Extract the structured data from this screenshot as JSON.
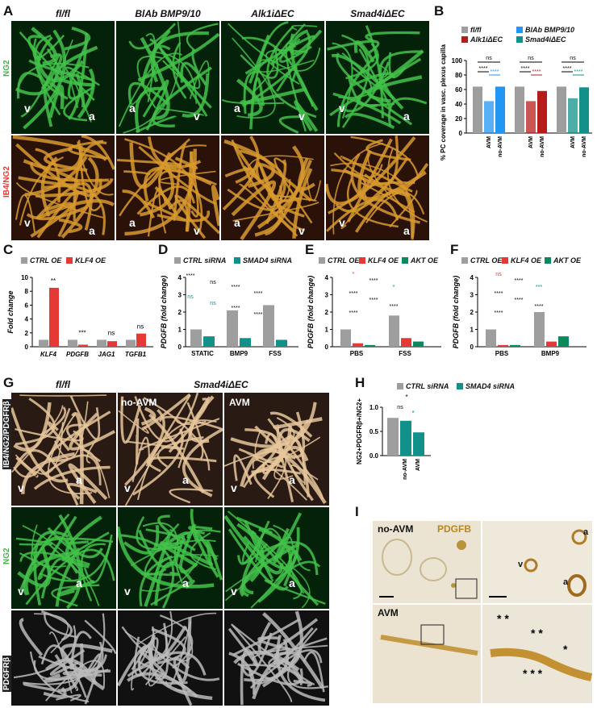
{
  "panels": {
    "A": {
      "letter": "A",
      "columns": [
        "fl/fl",
        "BlAb BMP9/10",
        "Alk1iΔEC",
        "Smad4iΔEC"
      ],
      "row_labels": [
        "NG2",
        "IB4/NG2"
      ],
      "tile_labels_top": [
        [
          "v",
          "a"
        ],
        [
          "a",
          "v"
        ],
        [
          "a",
          "v"
        ],
        [
          "v",
          "a",
          "v"
        ]
      ],
      "tile_labels_bottom": [
        [
          "v",
          "a"
        ],
        [
          "a",
          "v"
        ],
        [
          "a",
          "v"
        ],
        [
          "v",
          "a",
          "v"
        ]
      ]
    },
    "B": {
      "letter": "B",
      "legend": [
        "fl/fl",
        "BlAb BMP9/10",
        "Alk1iΔEC",
        "Smad4iΔEC"
      ],
      "ylabel": "% PC coverage in vasc. plexus capillaries",
      "yticks": [
        "0",
        "20",
        "40",
        "60",
        "80",
        "100"
      ],
      "sig": [
        "ns",
        "****",
        "****",
        "ns",
        "****",
        "****",
        "ns",
        "****",
        "****"
      ],
      "colors": {
        "ctrl": "#9e9e9e",
        "blab": "#2196f3",
        "alk1": "#b71c1c",
        "smad4": "#12918a"
      }
    },
    "C": {
      "letter": "C",
      "legend": [
        "CTRL OE",
        "KLF4 OE"
      ],
      "ylabel": "Fold change",
      "yticks": [
        "0",
        "2",
        "4",
        "6",
        "8",
        "10"
      ],
      "sig": [
        "**",
        "***",
        "ns",
        "ns"
      ],
      "colors": {
        "ctrl": "#9e9e9e",
        "oe": "#e53935"
      }
    },
    "D": {
      "letter": "D",
      "legend": [
        "CTRL siRNA",
        "SMAD4 siRNA"
      ],
      "ylabel": "PDGFB (fold change)",
      "yticks": [
        "0",
        "1",
        "2",
        "3",
        "4"
      ],
      "sig": [
        "****",
        "ns",
        "****",
        "****",
        "ns",
        "ns",
        "****",
        "****"
      ]
    },
    "E": {
      "letter": "E",
      "legend": [
        "CTRL OE",
        "KLF4 OE",
        "AKT OE"
      ],
      "ylabel": "PDGFB (fold change)",
      "yticks": [
        "0",
        "1",
        "2",
        "3",
        "4"
      ],
      "sig": [
        "*",
        "****",
        "*",
        "****",
        "****",
        "****",
        "****"
      ]
    },
    "F": {
      "letter": "F",
      "legend": [
        "CTRL OE",
        "KLF4 OE",
        "AKT OE"
      ],
      "ylabel": "PDGFB (fold change)",
      "yticks": [
        "0",
        "1",
        "2",
        "3",
        "4"
      ],
      "sig": [
        "ns",
        "****",
        "***",
        "****",
        "****",
        "****",
        "****"
      ]
    },
    "G": {
      "letter": "G",
      "columns": [
        "fl/fl",
        "Smad4iΔEC"
      ],
      "subcolumns": [
        "no-AVM",
        "AVM"
      ],
      "row_labels": [
        "IB4/NG2/PDGFRβ",
        "NG2",
        "PDGFRβ"
      ],
      "tile_labels": [
        "v",
        "a",
        "v",
        "a",
        "v",
        "v",
        "a"
      ]
    },
    "H": {
      "letter": "H",
      "legend": [
        "CTRL siRNA",
        "SMAD4 siRNA"
      ],
      "ylabel": "NG2+PDGFRβ+/NG2+",
      "yticks": [
        "0.0",
        "0.5",
        "1.0"
      ],
      "sig": [
        "*",
        "ns",
        "*"
      ]
    },
    "I": {
      "letter": "I",
      "labels": [
        "no-AVM",
        "PDGFB",
        "AVM"
      ],
      "tile_labels": [
        "a",
        "v",
        "a"
      ]
    }
  },
  "chart_data": [
    {
      "type": "bar",
      "panel": "B",
      "ylabel": "% PC coverage in vasc. plexus capillaries",
      "ylim": [
        0,
        100
      ],
      "groups": [
        {
          "categories": [
            "",
            "AVM",
            "no-AVM"
          ],
          "series": "BlAb BMP9/10",
          "values": [
            64,
            44,
            64
          ]
        },
        {
          "categories": [
            "",
            "AVM",
            "no-AVM"
          ],
          "series": "Alk1iΔEC",
          "values": [
            64,
            44,
            58
          ]
        },
        {
          "categories": [
            "",
            "AVM",
            "no-AVM"
          ],
          "series": "Smad4iΔEC",
          "values": [
            64,
            48,
            63
          ]
        }
      ]
    },
    {
      "type": "bar",
      "panel": "C",
      "ylabel": "Fold change",
      "ylim": [
        0,
        10
      ],
      "categories": [
        "KLF4",
        "PDGFB",
        "JAG1",
        "TGFB1"
      ],
      "series": [
        {
          "name": "CTRL OE",
          "values": [
            1,
            1,
            1,
            1
          ]
        },
        {
          "name": "KLF4 OE",
          "values": [
            8.5,
            0.3,
            0.8,
            1.9
          ]
        }
      ]
    },
    {
      "type": "bar",
      "panel": "D",
      "ylabel": "PDGFB (fold change)",
      "ylim": [
        0,
        4
      ],
      "categories": [
        "STATIC",
        "BMP9",
        "FSS"
      ],
      "series": [
        {
          "name": "CTRL siRNA",
          "values": [
            1.0,
            2.1,
            2.4
          ]
        },
        {
          "name": "SMAD4 siRNA",
          "values": [
            0.6,
            0.5,
            0.4
          ]
        }
      ]
    },
    {
      "type": "bar",
      "panel": "E",
      "ylabel": "PDGFB (fold change)",
      "ylim": [
        0,
        4
      ],
      "categories": [
        "PBS",
        "FSS"
      ],
      "series": [
        {
          "name": "CTRL OE",
          "values": [
            1.0,
            1.8
          ]
        },
        {
          "name": "KLF4 OE",
          "values": [
            0.2,
            0.5
          ]
        },
        {
          "name": "AKT OE",
          "values": [
            0.1,
            0.3
          ]
        }
      ]
    },
    {
      "type": "bar",
      "panel": "F",
      "ylabel": "PDGFB (fold change)",
      "ylim": [
        0,
        4
      ],
      "categories": [
        "PBS",
        "BMP9"
      ],
      "series": [
        {
          "name": "CTRL OE",
          "values": [
            1.0,
            2.0
          ]
        },
        {
          "name": "KLF4 OE",
          "values": [
            0.1,
            0.3
          ]
        },
        {
          "name": "AKT OE",
          "values": [
            0.1,
            0.6
          ]
        }
      ]
    },
    {
      "type": "bar",
      "panel": "H",
      "ylabel": "NG2+PDGFRβ+/NG2+",
      "ylim": [
        0,
        1.0
      ],
      "categories": [
        "",
        "no-AVM",
        "AVM"
      ],
      "values": [
        0.78,
        0.72,
        0.48
      ]
    }
  ]
}
